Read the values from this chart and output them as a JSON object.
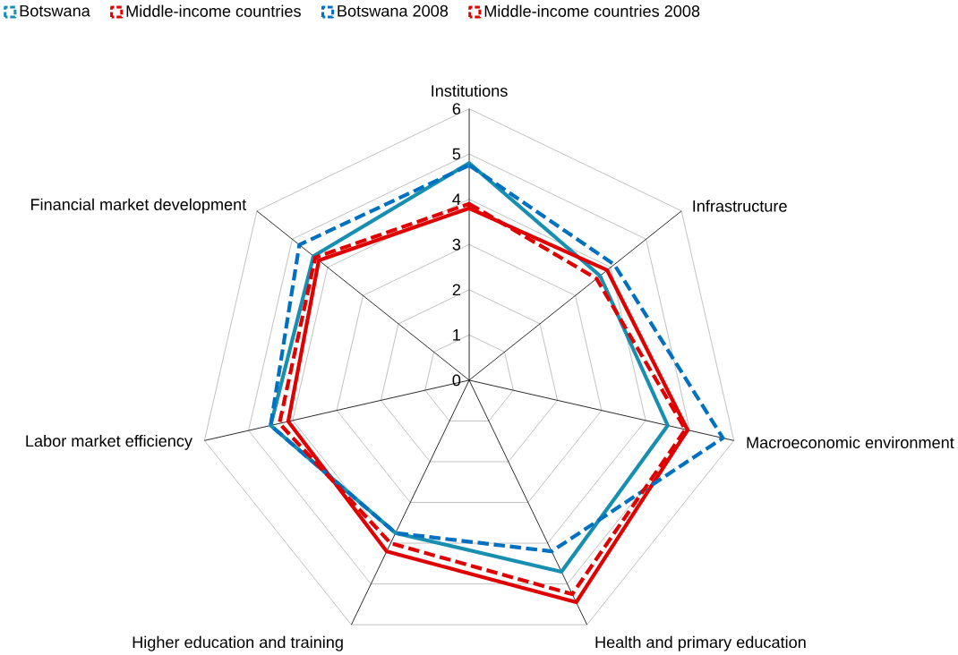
{
  "chart_data": {
    "type": "radar",
    "categories": [
      "Institutions",
      "Infrastructure",
      "Macroeconomic environment",
      "Health and primary education",
      "Higher education and training",
      "Labor market efficiency",
      "Financial market development"
    ],
    "ylim": [
      0,
      6
    ],
    "yticks": [
      0,
      1,
      2,
      3,
      4,
      5,
      6
    ],
    "grid": true,
    "legend": "top",
    "series": [
      {
        "name": "Botswana",
        "color": "#178fb0",
        "line_style": "solid",
        "values": [
          4.8,
          3.7,
          4.5,
          4.7,
          3.75,
          4.5,
          4.4
        ]
      },
      {
        "name": "Middle-income countries",
        "color": "#e00000",
        "line_style": "solid",
        "values": [
          3.8,
          3.9,
          4.95,
          5.45,
          4.2,
          4.1,
          4.25
        ]
      },
      {
        "name": "Botswana 2008",
        "color": "#0070c0",
        "line_style": "dashed",
        "values": [
          4.75,
          4.1,
          5.75,
          4.2,
          3.75,
          4.5,
          4.8
        ]
      },
      {
        "name": "Middle-income countries 2008",
        "color": "#e00000",
        "line_style": "dashed",
        "values": [
          3.9,
          3.6,
          4.9,
          5.25,
          4.0,
          4.3,
          4.35
        ]
      }
    ]
  }
}
